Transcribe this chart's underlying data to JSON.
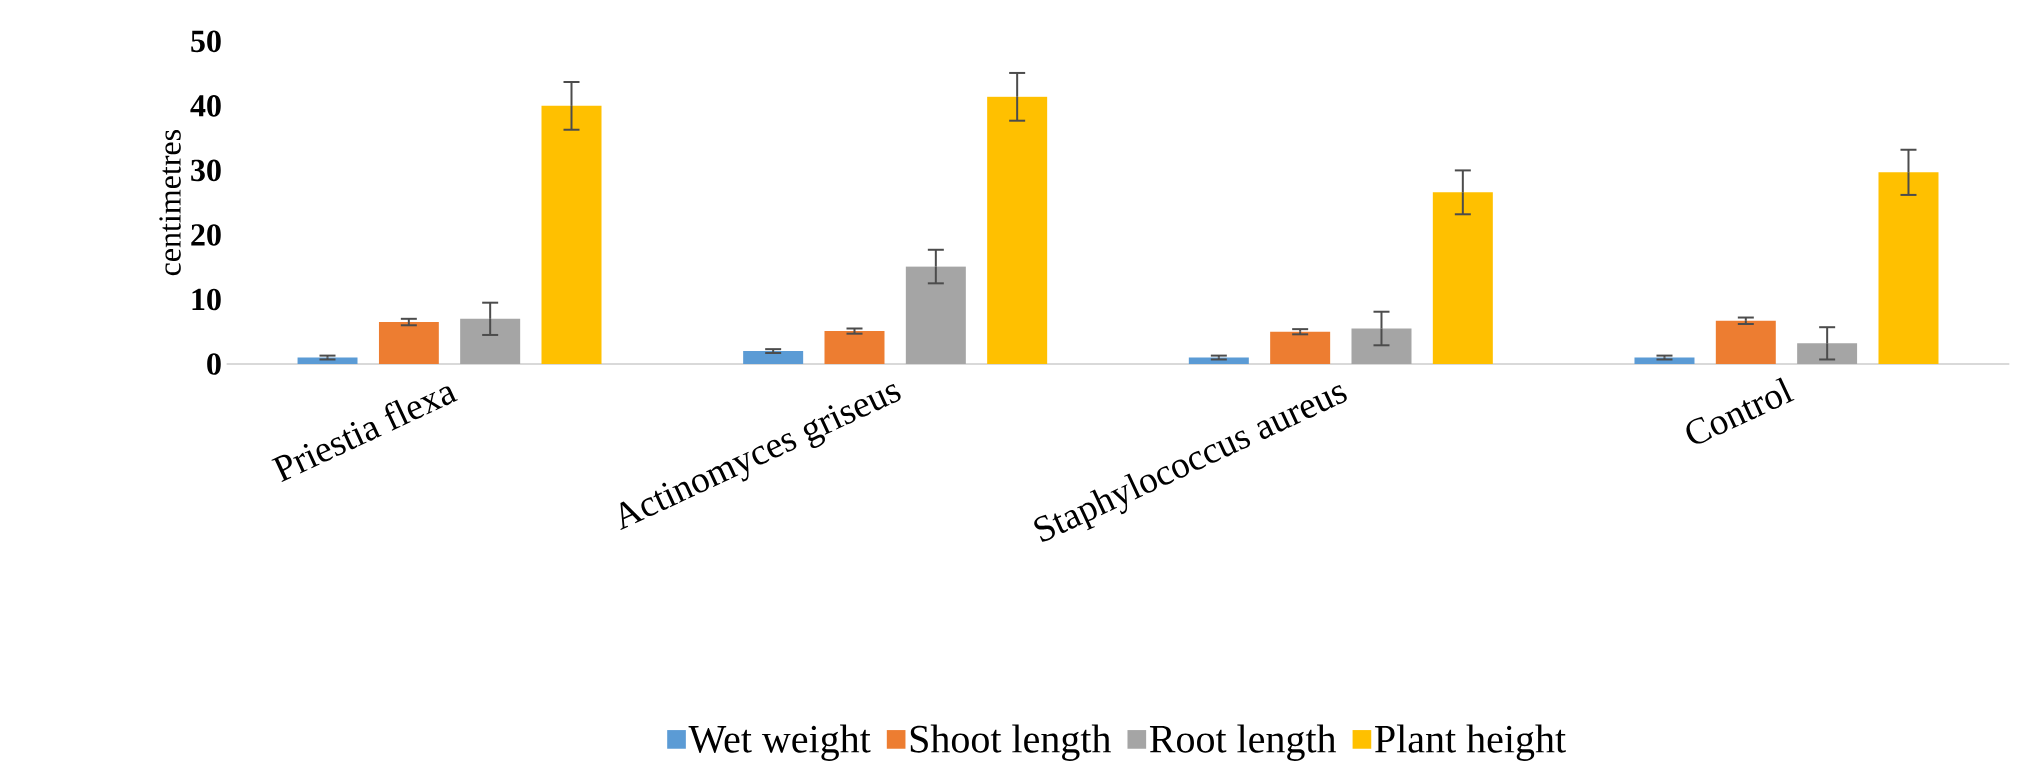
{
  "chart_data": {
    "type": "bar",
    "ylabel": "centimetres",
    "categories": [
      "Priestia flexa",
      "Actinomyces griseus",
      "Staphylococcus aureus",
      "Control"
    ],
    "series": [
      {
        "name": "Wet weight",
        "color": "#5b9bd5",
        "values": [
          1.0,
          2.0,
          1.0,
          1.0
        ],
        "errors": [
          0.3,
          0.3,
          0.3,
          0.3
        ]
      },
      {
        "name": "Shoot length",
        "color": "#ed7d31",
        "values": [
          6.5,
          5.1,
          5.0,
          6.7
        ],
        "errors": [
          0.5,
          0.4,
          0.4,
          0.5
        ]
      },
      {
        "name": "Root length",
        "color": "#a5a5a5",
        "values": [
          7.0,
          15.1,
          5.5,
          3.2
        ],
        "errors": [
          2.5,
          2.6,
          2.6,
          2.5
        ]
      },
      {
        "name": "Plant height",
        "color": "#ffc000",
        "values": [
          40.0,
          41.4,
          26.6,
          29.7
        ],
        "errors": [
          3.7,
          3.7,
          3.4,
          3.5
        ]
      }
    ],
    "ylim": [
      0,
      50
    ],
    "yticks": [
      0,
      10,
      20,
      30,
      40,
      50
    ],
    "legend": "bottom"
  }
}
